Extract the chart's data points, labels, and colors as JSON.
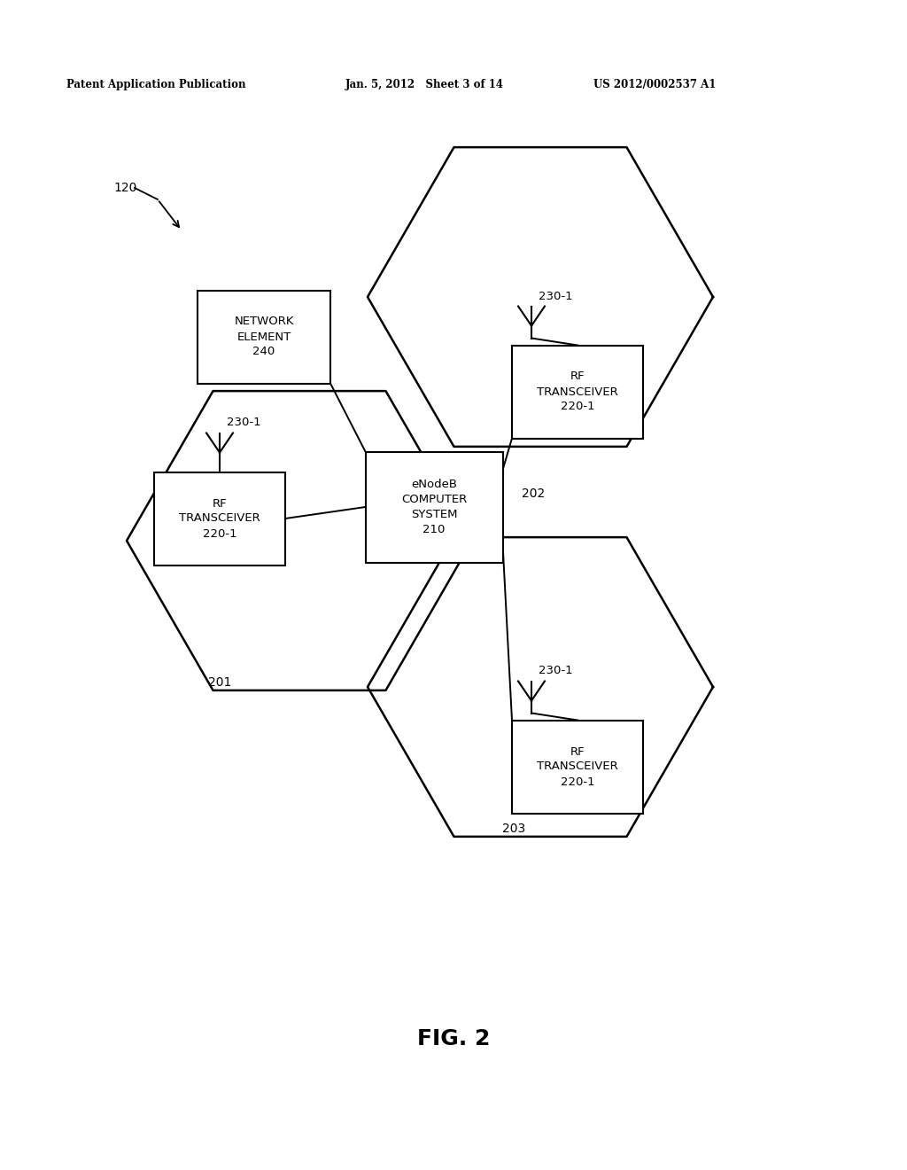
{
  "bg_color": "#ffffff",
  "header_left": "Patent Application Publication",
  "header_mid": "Jan. 5, 2012   Sheet 3 of 14",
  "header_right": "US 2012/0002537 A1",
  "fig_label": "FIG. 2",
  "label_120": "120",
  "label_201": "201",
  "label_202": "202",
  "label_203": "203",
  "center_box_label": "eNodeB\nCOMPUTER\nSYSTEM\n210",
  "network_box_label": "NETWORK\nELEMENT\n240",
  "rf_box1_label": "RF\nTRANSCEIVER\n220-1",
  "rf_box2_label": "RF\nTRANSCEIVER\n220-1",
  "rf_box3_label": "RF\nTRANSCEIVER\n220-1",
  "ant1_label": "230-1",
  "ant2_label": "230-1",
  "ant3_label": "230-1",
  "line_color": "#000000",
  "text_color": "#000000",
  "box_edge_color": "#000000"
}
